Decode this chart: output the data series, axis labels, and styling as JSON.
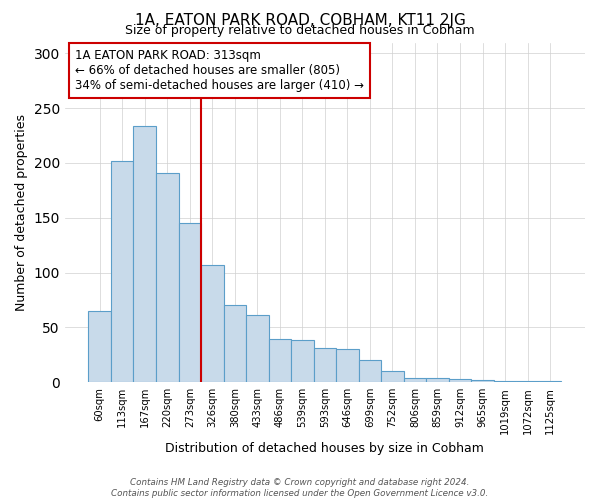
{
  "title": "1A, EATON PARK ROAD, COBHAM, KT11 2JG",
  "subtitle": "Size of property relative to detached houses in Cobham",
  "xlabel": "Distribution of detached houses by size in Cobham",
  "ylabel": "Number of detached properties",
  "bar_labels": [
    "60sqm",
    "113sqm",
    "167sqm",
    "220sqm",
    "273sqm",
    "326sqm",
    "380sqm",
    "433sqm",
    "486sqm",
    "539sqm",
    "593sqm",
    "646sqm",
    "699sqm",
    "752sqm",
    "806sqm",
    "859sqm",
    "912sqm",
    "965sqm",
    "1019sqm",
    "1072sqm",
    "1125sqm"
  ],
  "bar_values": [
    65,
    202,
    234,
    191,
    145,
    107,
    70,
    61,
    39,
    38,
    31,
    30,
    20,
    10,
    4,
    4,
    3,
    2,
    1,
    1,
    1
  ],
  "bar_color": "#c8daea",
  "bar_edge_color": "#5b9ec9",
  "vline_color": "#cc0000",
  "annotation_title": "1A EATON PARK ROAD: 313sqm",
  "annotation_line1": "← 66% of detached houses are smaller (805)",
  "annotation_line2": "34% of semi-detached houses are larger (410) →",
  "ylim": [
    0,
    310
  ],
  "yticks": [
    0,
    50,
    100,
    150,
    200,
    250,
    300
  ],
  "footer1": "Contains HM Land Registry data © Crown copyright and database right 2024.",
  "footer2": "Contains public sector information licensed under the Open Government Licence v3.0."
}
